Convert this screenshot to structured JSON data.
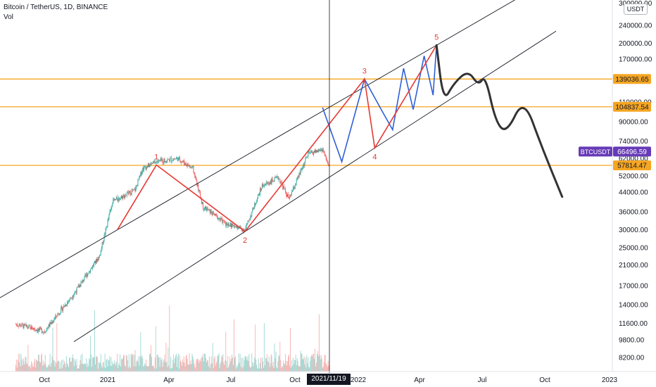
{
  "header": {
    "symbol": "Bitcoin / TetherUS, 1D, BINANCE",
    "indicator": "Vol"
  },
  "currency_button": "USDT",
  "crosshair_date": "2021/11/19",
  "colors": {
    "candle_up": "#26a69a",
    "candle_down": "#ef5350",
    "horizontal_level": "#f5a623",
    "trend_line": "#131722",
    "wave_red": "#e53935",
    "wave_blue": "#2f5fd8",
    "projection": "#333333",
    "price_tag": "#f5a623",
    "symbol_tag": "#673ab7"
  },
  "chart_data": {
    "type": "line",
    "y_scale": "log",
    "price_axis_ticks": [
      "240000.00",
      "200000.00",
      "170000.00",
      "110000.00",
      "90000.00",
      "74000.00",
      "62000.00",
      "52000.00",
      "44000.00",
      "36000.00",
      "30000.00",
      "25000.00",
      "21000.00",
      "17000.00",
      "14000.00",
      "11600.00",
      "9800.00",
      "8200.00"
    ],
    "price_axis_top_partial": "300000.00",
    "time_axis_ticks": [
      "Oct",
      "2021",
      "Apr",
      "Jul",
      "Oct",
      "2022",
      "Apr",
      "Jul",
      "Oct",
      "2023"
    ],
    "horizontal_levels": [
      {
        "price": 139036.65,
        "label": "139036.65"
      },
      {
        "price": 104837.54,
        "label": "104837.54"
      },
      {
        "price": 57814.47,
        "label": "57814.47"
      }
    ],
    "current_price": {
      "symbol": "BTCUSDT",
      "price": 66496.59,
      "label": "66496.59"
    },
    "wave_labels": [
      {
        "label": "1",
        "date": "2021-03-13",
        "price": 58000
      },
      {
        "label": "2",
        "date": "2021-07-20",
        "price": 29500
      },
      {
        "label": "3",
        "date": "2022-01-10",
        "price": 139000
      },
      {
        "label": "4",
        "date": "2022-01-25",
        "price": 69000
      },
      {
        "label": "5",
        "date": "2022-04-25",
        "price": 196000
      }
    ],
    "red_wave_path": [
      {
        "date": "2021-01-15",
        "price": 30000
      },
      {
        "date": "2021-03-13",
        "price": 58000
      },
      {
        "date": "2021-07-20",
        "price": 29500
      },
      {
        "date": "2022-01-10",
        "price": 139000
      },
      {
        "date": "2022-01-25",
        "price": 69000
      },
      {
        "date": "2022-04-25",
        "price": 196000
      }
    ],
    "blue_wave_path": [
      {
        "date": "2021-11-10",
        "price": 104000
      },
      {
        "date": "2021-12-08",
        "price": 60000
      },
      {
        "date": "2022-01-10",
        "price": 139000
      },
      {
        "date": "2022-02-05",
        "price": 100000
      },
      {
        "date": "2022-02-20",
        "price": 83000
      },
      {
        "date": "2022-03-08",
        "price": 155000
      },
      {
        "date": "2022-03-22",
        "price": 102000
      },
      {
        "date": "2022-04-07",
        "price": 176000
      },
      {
        "date": "2022-04-20",
        "price": 118000
      },
      {
        "date": "2022-04-25",
        "price": 196000
      }
    ],
    "projection_path": [
      {
        "date": "2022-04-25",
        "price": 196000
      },
      {
        "date": "2022-05-05",
        "price": 110000
      },
      {
        "date": "2022-05-20",
        "price": 133000
      },
      {
        "date": "2022-06-10",
        "price": 152000
      },
      {
        "date": "2022-06-25",
        "price": 130000
      },
      {
        "date": "2022-07-05",
        "price": 145000
      },
      {
        "date": "2022-07-20",
        "price": 90000
      },
      {
        "date": "2022-08-05",
        "price": 80000
      },
      {
        "date": "2022-08-30",
        "price": 115000
      },
      {
        "date": "2022-09-25",
        "price": 70000
      },
      {
        "date": "2022-10-25",
        "price": 42000
      }
    ]
  }
}
